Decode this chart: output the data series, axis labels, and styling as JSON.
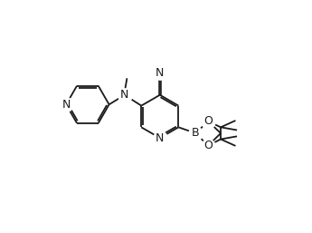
{
  "bg_color": "#ffffff",
  "line_color": "#1a1a1a",
  "line_width": 1.3,
  "figsize": [
    3.45,
    2.57
  ],
  "dpi": 100,
  "xlim": [
    0,
    10
  ],
  "ylim": [
    0,
    7.5
  ]
}
